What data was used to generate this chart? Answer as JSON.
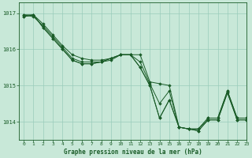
{
  "background_color": "#c8e8d8",
  "grid_color": "#99ccbb",
  "line_color": "#1a5c28",
  "xlabel": "Graphe pression niveau de la mer (hPa)",
  "xlabel_color": "#1a5c28",
  "xlim": [
    -0.5,
    23
  ],
  "ylim": [
    1013.5,
    1017.3
  ],
  "yticks": [
    1014,
    1015,
    1016,
    1017
  ],
  "xticks": [
    0,
    1,
    2,
    3,
    4,
    5,
    6,
    7,
    8,
    9,
    10,
    11,
    12,
    13,
    14,
    15,
    16,
    17,
    18,
    19,
    20,
    21,
    22,
    23
  ],
  "series": [
    [
      1016.95,
      1016.95,
      1016.7,
      1016.4,
      1016.1,
      1015.85,
      1015.75,
      1015.7,
      1015.7,
      1015.75,
      1015.85,
      1015.85,
      1015.85,
      1015.1,
      1015.05,
      1015.0,
      1013.85,
      1013.8,
      1013.8,
      1014.1,
      1014.1,
      1014.85,
      1014.1,
      1014.1
    ],
    [
      1016.95,
      1016.9,
      1016.65,
      1016.35,
      1016.05,
      1015.75,
      1015.65,
      1015.65,
      1015.65,
      1015.7,
      1015.85,
      1015.85,
      1015.65,
      1015.05,
      1014.5,
      1014.85,
      1013.85,
      1013.8,
      1013.8,
      1014.1,
      1014.1,
      1014.85,
      1014.1,
      1014.1
    ],
    [
      1016.9,
      1016.95,
      1016.6,
      1016.3,
      1016.0,
      1015.7,
      1015.6,
      1015.6,
      1015.65,
      1015.75,
      1015.85,
      1015.85,
      1015.5,
      1015.0,
      1014.1,
      1014.6,
      1013.85,
      1013.8,
      1013.75,
      1014.05,
      1014.05,
      1014.8,
      1014.05,
      1014.05
    ],
    [
      1016.9,
      1016.95,
      1016.6,
      1016.3,
      1016.0,
      1015.7,
      1015.6,
      1015.6,
      1015.65,
      1015.75,
      1015.85,
      1015.85,
      1015.5,
      1015.0,
      1014.1,
      1014.6,
      1013.85,
      1013.8,
      1013.75,
      1014.05,
      1014.05,
      1014.8,
      1014.05,
      1014.05
    ]
  ]
}
